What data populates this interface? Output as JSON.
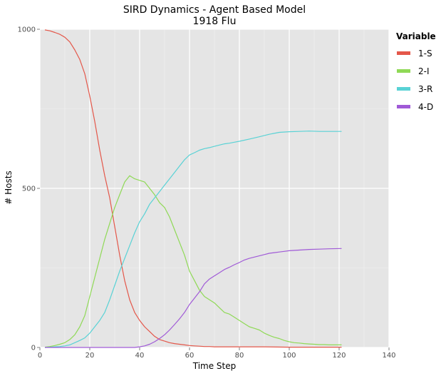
{
  "chart_data": {
    "type": "line",
    "title": "SIRD Dynamics - Agent Based Model",
    "subtitle": "1918 Flu",
    "xlabel": "Time Step",
    "ylabel": "# Hosts",
    "xlim": [
      0,
      140
    ],
    "ylim": [
      0,
      1000
    ],
    "x_ticks": [
      0,
      20,
      40,
      60,
      80,
      100,
      120,
      140
    ],
    "y_ticks": [
      0,
      500,
      1000
    ],
    "grid": true,
    "legend_title": "Variable",
    "legend_position": "right",
    "series": [
      {
        "name": "1-S",
        "color": "#e4574a",
        "x": [
          2,
          4,
          6,
          8,
          10,
          12,
          14,
          16,
          18,
          20,
          22,
          24,
          26,
          28,
          30,
          32,
          34,
          36,
          38,
          40,
          42,
          44,
          46,
          48,
          50,
          52,
          54,
          56,
          58,
          60,
          62,
          64,
          66,
          68,
          70,
          80,
          90,
          100,
          110,
          121
        ],
        "values": [
          998,
          995,
          990,
          984,
          975,
          960,
          935,
          905,
          860,
          790,
          710,
          620,
          540,
          470,
          380,
          290,
          210,
          150,
          110,
          85,
          65,
          50,
          35,
          25,
          20,
          15,
          12,
          10,
          8,
          6,
          5,
          4,
          3,
          3,
          2,
          2,
          2,
          1,
          1,
          1
        ]
      },
      {
        "name": "2-I",
        "color": "#8fd956",
        "x": [
          2,
          4,
          6,
          8,
          10,
          12,
          14,
          16,
          18,
          20,
          22,
          24,
          26,
          28,
          30,
          32,
          34,
          36,
          38,
          40,
          42,
          44,
          46,
          48,
          50,
          52,
          54,
          56,
          58,
          60,
          62,
          64,
          66,
          68,
          70,
          72,
          74,
          76,
          78,
          80,
          82,
          84,
          86,
          88,
          90,
          92,
          94,
          96,
          98,
          100,
          102,
          104,
          106,
          108,
          110,
          112,
          114,
          116,
          118,
          121
        ],
        "values": [
          1,
          3,
          6,
          10,
          15,
          25,
          40,
          65,
          100,
          160,
          220,
          280,
          340,
          390,
          440,
          480,
          520,
          540,
          530,
          525,
          520,
          500,
          480,
          455,
          440,
          410,
          370,
          330,
          290,
          240,
          210,
          180,
          160,
          150,
          140,
          125,
          110,
          105,
          95,
          85,
          75,
          65,
          60,
          55,
          45,
          38,
          32,
          28,
          22,
          18,
          15,
          14,
          12,
          11,
          10,
          9,
          9,
          8,
          8,
          8
        ]
      },
      {
        "name": "3-R",
        "color": "#59d2d5",
        "x": [
          2,
          4,
          6,
          8,
          10,
          12,
          14,
          16,
          18,
          20,
          22,
          24,
          26,
          28,
          30,
          32,
          34,
          36,
          38,
          40,
          42,
          44,
          46,
          48,
          50,
          52,
          54,
          56,
          58,
          60,
          62,
          64,
          66,
          68,
          70,
          72,
          74,
          76,
          78,
          80,
          84,
          88,
          92,
          96,
          100,
          104,
          108,
          112,
          116,
          121
        ],
        "values": [
          0,
          1,
          2,
          3,
          5,
          8,
          15,
          22,
          30,
          45,
          65,
          85,
          110,
          150,
          195,
          240,
          280,
          320,
          360,
          395,
          420,
          450,
          470,
          490,
          510,
          530,
          550,
          570,
          590,
          605,
          612,
          620,
          625,
          628,
          632,
          636,
          640,
          642,
          645,
          648,
          655,
          662,
          670,
          676,
          678,
          679,
          680,
          679,
          679,
          679
        ]
      },
      {
        "name": "4-D",
        "color": "#a05ad7",
        "x": [
          2,
          10,
          20,
          30,
          38,
          40,
          42,
          44,
          46,
          48,
          50,
          52,
          54,
          56,
          58,
          60,
          62,
          64,
          66,
          68,
          70,
          72,
          74,
          76,
          78,
          80,
          82,
          84,
          86,
          88,
          90,
          92,
          94,
          96,
          98,
          100,
          104,
          108,
          112,
          116,
          121
        ],
        "values": [
          0,
          0,
          0,
          0,
          0,
          2,
          5,
          10,
          18,
          28,
          40,
          55,
          72,
          90,
          110,
          135,
          155,
          175,
          200,
          215,
          225,
          235,
          245,
          252,
          260,
          267,
          275,
          280,
          284,
          288,
          292,
          296,
          298,
          300,
          302,
          304,
          306,
          308,
          309,
          310,
          311
        ]
      }
    ]
  }
}
